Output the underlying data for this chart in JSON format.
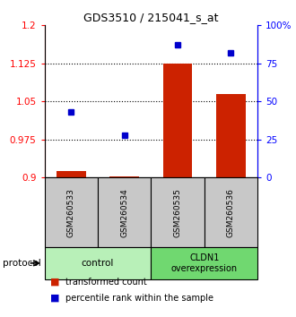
{
  "title": "GDS3510 / 215041_s_at",
  "samples": [
    "GSM260533",
    "GSM260534",
    "GSM260535",
    "GSM260536"
  ],
  "bar_values": [
    0.912,
    0.902,
    1.125,
    1.065
  ],
  "dot_vals_pct": [
    43,
    28,
    87,
    82
  ],
  "bar_color": "#cc2200",
  "dot_color": "#0000cc",
  "ylim_left": [
    0.9,
    1.2
  ],
  "ylim_right": [
    0,
    100
  ],
  "yticks_left": [
    0.9,
    0.975,
    1.05,
    1.125,
    1.2
  ],
  "ytick_labels_left": [
    "0.9",
    "0.975",
    "1.05",
    "1.125",
    "1.2"
  ],
  "yticks_right": [
    0,
    25,
    50,
    75,
    100
  ],
  "ytick_labels_right": [
    "0",
    "25",
    "50",
    "75",
    "100%"
  ],
  "dotted_lines": [
    0.975,
    1.05,
    1.125
  ],
  "protocol_label": "protocol",
  "legend_bar": "transformed count",
  "legend_dot": "percentile rank within the sample",
  "sample_box_color": "#c8c8c8",
  "group_box_color_control": "#b8f0b8",
  "group_box_color_cldn1": "#70d870",
  "bar_base": 0.9,
  "bar_width": 0.55
}
